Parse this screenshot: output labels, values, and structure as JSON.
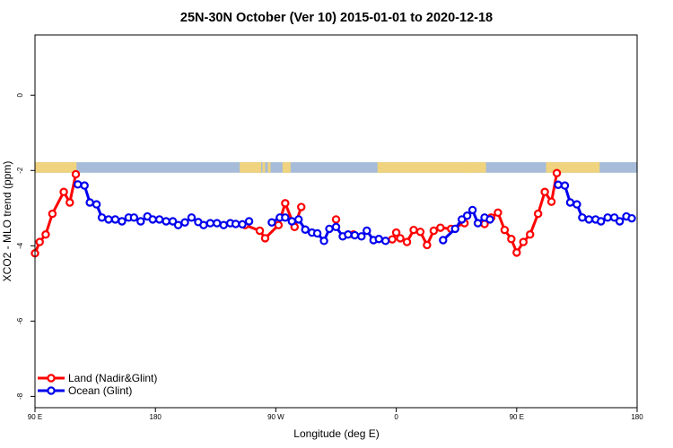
{
  "chart_data": {
    "type": "line",
    "title": "25N-30N October (Ver 10)   2015-01-01 to 2020-12-18",
    "xlabel": "Longitude (deg E)",
    "ylabel": "XCO2 - MLO trend (ppm)",
    "x_ticks": [
      {
        "value": 90,
        "label": "90 E"
      },
      {
        "value": 180,
        "label": "180"
      },
      {
        "value": 270,
        "label": "90 W"
      },
      {
        "value": 360,
        "label": "0"
      },
      {
        "value": 450,
        "label": "90 E"
      },
      {
        "value": 540,
        "label": "180"
      }
    ],
    "y_ticks": [
      {
        "value": 0,
        "label": "0"
      },
      {
        "value": -2,
        "label": "-2"
      },
      {
        "value": -4,
        "label": "-4"
      },
      {
        "value": -6,
        "label": "-6"
      },
      {
        "value": -8,
        "label": "-8"
      }
    ],
    "xlim": [
      90,
      540
    ],
    "ylim": [
      -8.3,
      1.6
    ],
    "grid": false,
    "legend_position": "bottom-left",
    "land_ocean_strip": {
      "y_range": [
        -2.06,
        -1.78
      ],
      "ocean_color": "#a7bcd8",
      "land_color": "#f0d37e",
      "land_spans": [
        [
          90,
          121
        ],
        [
          243,
          259
        ],
        [
          260,
          262
        ],
        [
          264,
          266
        ],
        [
          275,
          279
        ],
        [
          278,
          281
        ],
        [
          346,
          417
        ],
        [
          413,
          427
        ],
        [
          472,
          512
        ]
      ]
    },
    "series": [
      {
        "name": "Land (Nadir&Glint)",
        "color": "#ff0000",
        "points": [
          [
            90,
            -4.2
          ],
          [
            93.5,
            -3.9
          ],
          [
            98,
            -3.7
          ],
          [
            103,
            -3.15
          ],
          [
            111.5,
            -2.57
          ],
          [
            116,
            -2.85
          ],
          [
            120.5,
            -2.1
          ],
          [
            247,
            -3.45
          ],
          [
            258,
            -3.6
          ],
          [
            262,
            -3.8
          ],
          [
            272,
            -3.45
          ],
          [
            277,
            -2.87
          ],
          [
            284,
            -3.5
          ],
          [
            289,
            -2.97
          ],
          [
            315,
            -3.3
          ],
          [
            328,
            -3.7
          ],
          [
            357,
            -3.83
          ],
          [
            360,
            -3.65
          ],
          [
            363,
            -3.8
          ],
          [
            368,
            -3.9
          ],
          [
            373,
            -3.58
          ],
          [
            378,
            -3.63
          ],
          [
            383,
            -3.98
          ],
          [
            388,
            -3.6
          ],
          [
            393,
            -3.52
          ],
          [
            401,
            -3.55
          ],
          [
            411,
            -3.4
          ],
          [
            426,
            -3.42
          ],
          [
            431,
            -3.25
          ],
          [
            436,
            -3.12
          ],
          [
            441,
            -3.58
          ],
          [
            446,
            -3.82
          ],
          [
            450,
            -4.18
          ],
          [
            455,
            -3.9
          ],
          [
            460,
            -3.7
          ],
          [
            466,
            -3.15
          ],
          [
            471,
            -2.57
          ],
          [
            476,
            -2.83
          ],
          [
            480,
            -2.07
          ]
        ]
      },
      {
        "name": "Ocean (Glint)",
        "color": "#0000ee",
        "points": [
          [
            122,
            -2.37
          ],
          [
            127,
            -2.4
          ],
          [
            131,
            -2.85
          ],
          [
            136,
            -2.9
          ],
          [
            140,
            -3.25
          ],
          [
            145,
            -3.3
          ],
          [
            150,
            -3.3
          ],
          [
            155,
            -3.35
          ],
          [
            160,
            -3.25
          ],
          [
            164,
            -3.25
          ],
          [
            169,
            -3.35
          ],
          [
            174,
            -3.22
          ],
          [
            178,
            -3.3
          ],
          [
            183,
            -3.3
          ],
          [
            188,
            -3.35
          ],
          [
            193,
            -3.35
          ],
          [
            197,
            -3.45
          ],
          [
            202,
            -3.38
          ],
          [
            207,
            -3.25
          ],
          [
            212,
            -3.37
          ],
          [
            216,
            -3.45
          ],
          [
            221,
            -3.4
          ],
          [
            226,
            -3.4
          ],
          [
            231,
            -3.45
          ],
          [
            236,
            -3.4
          ],
          [
            240,
            -3.42
          ],
          [
            245,
            -3.43
          ],
          [
            250,
            -3.35
          ],
          [
            267,
            -3.38
          ],
          [
            273,
            -3.25
          ],
          [
            277,
            -3.25
          ],
          [
            282,
            -3.35
          ],
          [
            287,
            -3.3
          ],
          [
            292,
            -3.57
          ],
          [
            297,
            -3.65
          ],
          [
            301,
            -3.67
          ],
          [
            306,
            -3.87
          ],
          [
            310,
            -3.55
          ],
          [
            315,
            -3.5
          ],
          [
            320,
            -3.75
          ],
          [
            324,
            -3.7
          ],
          [
            329,
            -3.72
          ],
          [
            334,
            -3.75
          ],
          [
            338,
            -3.6
          ],
          [
            343,
            -3.85
          ],
          [
            347,
            -3.82
          ],
          [
            352,
            -3.87
          ],
          [
            395,
            -3.85
          ],
          [
            404,
            -3.55
          ],
          [
            409,
            -3.3
          ],
          [
            413,
            -3.2
          ],
          [
            417,
            -3.05
          ],
          [
            421,
            -3.4
          ],
          [
            426,
            -3.25
          ],
          [
            430,
            -3.3
          ],
          [
            481,
            -2.38
          ],
          [
            486,
            -2.4
          ],
          [
            490,
            -2.85
          ],
          [
            495,
            -2.9
          ],
          [
            499,
            -3.25
          ],
          [
            504,
            -3.3
          ],
          [
            509,
            -3.3
          ],
          [
            513,
            -3.35
          ],
          [
            518,
            -3.25
          ],
          [
            523,
            -3.25
          ],
          [
            527,
            -3.35
          ],
          [
            532,
            -3.22
          ],
          [
            536,
            -3.27
          ]
        ]
      }
    ]
  }
}
